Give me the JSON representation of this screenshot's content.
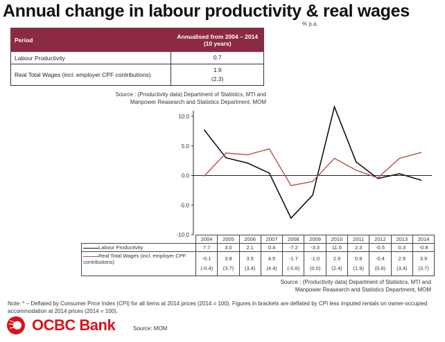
{
  "title": "Annual change in labour productivity & real wages",
  "unit": "% p.a.",
  "summary_table": {
    "headers": [
      "Period",
      "Annualised from 2004 – 2014",
      "(10 years)"
    ],
    "rows": [
      {
        "label": "Labour Productivity",
        "value": "0.7",
        "alt": ""
      },
      {
        "label": "Real Total Wages (incl. employer CPF contributions)",
        "value": "1.9",
        "alt": "(2.3)"
      }
    ]
  },
  "source_top": [
    "Source :  (Productivity data) Department of Statistics, MTI and",
    "Manpower Reasearch and Statistics Department, MOM"
  ],
  "source_bottom": [
    "Source :  (Productivity data) Department of Statistics, MTI and",
    "Manpower Reasearch and Statistics Department, MOM"
  ],
  "note": "Note: * – Deflated by Consumer Price Index (CPI) for all items at 2014 prices (2014 = 100). Figures in brackets are deflated by CPI less imputed rentals on owner-occupied accommodation at 2014 prices (2014 = 100).",
  "logo_text": "OCBC Bank",
  "source_mom": "Source: MOM",
  "chart_data": {
    "type": "line",
    "x": [
      "2004",
      "2005",
      "2006",
      "2007",
      "2008",
      "2009",
      "2010",
      "2011",
      "2012",
      "2013",
      "2014"
    ],
    "ylim": [
      -10,
      10
    ],
    "yticks": [
      "10.0",
      "5.0",
      "0.0",
      "-5.0",
      "-10.0"
    ],
    "series": [
      {
        "name": "Labour Productivity",
        "color": "#111111",
        "values": [
          7.7,
          3.0,
          2.1,
          0.4,
          -7.2,
          -3.3,
          11.6,
          2.3,
          -0.5,
          0.3,
          -0.8
        ],
        "labels": [
          "7.7",
          "3.0",
          "2.1",
          "0.4",
          "-7.2",
          "-3.3",
          "11.6",
          "2.3",
          "-0.5",
          "0.3",
          "-0.8"
        ]
      },
      {
        "name": "Real Total Wages (incl. employer CPF contributions)",
        "color": "#b0504c",
        "values": [
          -0.1,
          3.8,
          3.5,
          4.5,
          -1.7,
          -1.0,
          2.9,
          0.9,
          -0.4,
          2.9,
          3.9
        ],
        "labels": [
          "-0.1",
          "3.8",
          "3.5",
          "4.5",
          "-1.7",
          "-1.0",
          "2.9",
          "0.9",
          "-0.4",
          "2.9",
          "3.9"
        ],
        "alt_labels": [
          "(-0.4)",
          "(3.7)",
          "(3.4)",
          "(4.4)",
          "(-0.6)",
          "(0.0)",
          "(2.4)",
          "(1.9)",
          "(0.6)",
          "(3.4)",
          "(3.7)"
        ]
      }
    ]
  }
}
